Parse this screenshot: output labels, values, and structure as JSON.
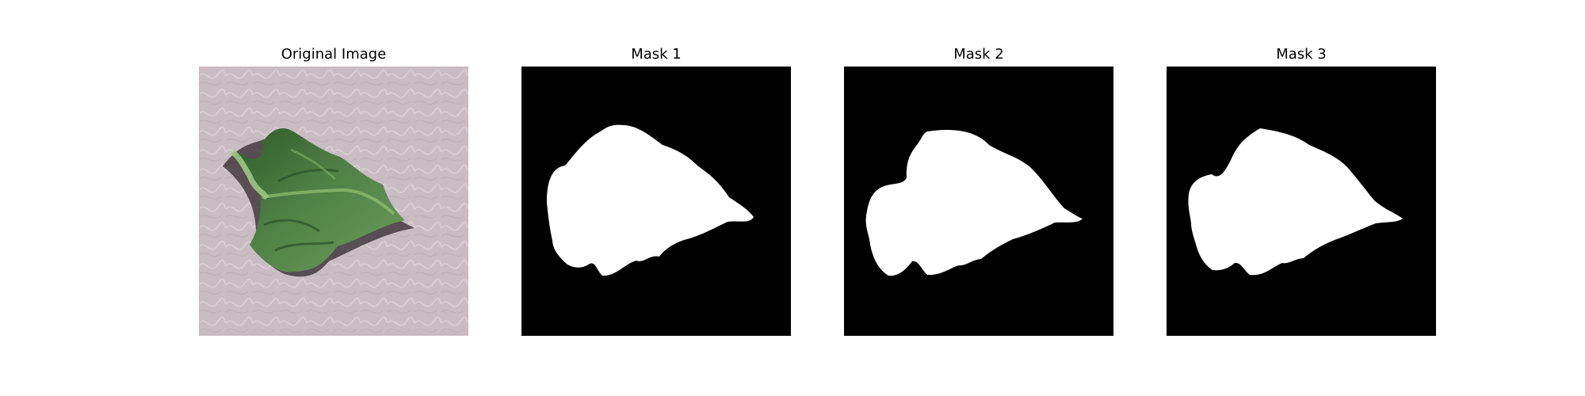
{
  "panels": [
    {
      "title": "Original Image"
    },
    {
      "title": "Mask 1"
    },
    {
      "title": "Mask 2"
    },
    {
      "title": "Mask 3"
    }
  ],
  "colors": {
    "background": "#c9bcc3",
    "leaf_dark": "#35622f",
    "leaf_mid": "#4f8045",
    "leaf_light": "#78a866",
    "mask_background": "#000000",
    "mask_foreground": "#ffffff"
  }
}
